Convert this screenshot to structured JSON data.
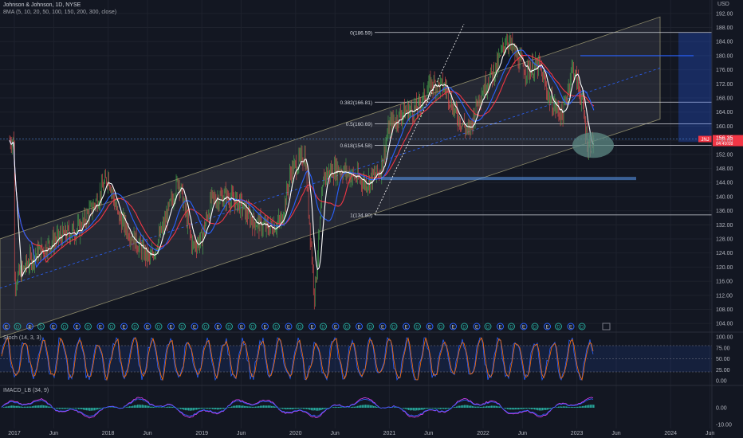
{
  "header": {
    "title": "Johnson & Johnson, 1D, NYSE",
    "indicator": "8MA (5, 10, 20, 50, 100, 150, 200, 300, close)"
  },
  "currency": "USD",
  "price_axis": {
    "ticks": [
      "192.00",
      "188.00",
      "184.00",
      "180.00",
      "176.00",
      "172.00",
      "168.00",
      "164.00",
      "160.00",
      "156.00",
      "152.00",
      "148.00",
      "144.00",
      "140.00",
      "136.00",
      "132.00",
      "128.00",
      "124.00",
      "120.00",
      "116.00",
      "112.00",
      "108.00",
      "104.00"
    ],
    "last_price_badge": "156.35",
    "last_price_time": "04:49:08",
    "symbol_tag": "JNJ"
  },
  "fib_levels": [
    {
      "label": "0(186.59)",
      "value": 186.59
    },
    {
      "label": "0.382(166.81)",
      "value": 166.81
    },
    {
      "label": "0.5(160.69)",
      "value": 160.69
    },
    {
      "label": "0.618(154.58)",
      "value": 154.58
    },
    {
      "label": "1(134.80)",
      "value": 134.8
    }
  ],
  "time_axis": [
    "2017",
    "Jun",
    "2018",
    "Jun",
    "2019",
    "Jun",
    "2020",
    "Jun",
    "2021",
    "Jun",
    "2022",
    "Jun",
    "2023",
    "Jun",
    "2024",
    "Jun"
  ],
  "stoch": {
    "label": "Stoch (14, 3, 3)",
    "ticks": [
      "100.00",
      "75.00",
      "50.00",
      "25.00",
      "0.00"
    ]
  },
  "imacd": {
    "label": "IMACD_LB (34, 9)",
    "ticks": [
      "0.00",
      "-10.00"
    ]
  },
  "colors": {
    "background": "#131722",
    "up_candle": "#26a69a",
    "down_candle": "#ef5350",
    "wick_green": "#4caf50",
    "ma_white": "#ffffff",
    "ma_blue": "#2962ff",
    "ma_red": "#f23645",
    "channel": "#787b86",
    "highlight_ellipse": "#5d8a84"
  },
  "chart_data": {
    "type": "line",
    "title": "Johnson & Johnson, 1D, NYSE",
    "xlabel": "",
    "ylabel": "USD",
    "ylim": [
      102,
      194
    ],
    "series": [
      {
        "values": [
          [
            2017.0,
            116
          ],
          [
            2017.2,
            123
          ],
          [
            2017.45,
            128
          ],
          [
            2017.7,
            131
          ],
          [
            2017.9,
            140
          ],
          [
            2018.0,
            146
          ],
          [
            2018.1,
            135
          ],
          [
            2018.3,
            127
          ],
          [
            2018.45,
            122
          ],
          [
            2018.6,
            132
          ],
          [
            2018.75,
            145
          ],
          [
            2018.9,
            126
          ],
          [
            2019.0,
            128
          ],
          [
            2019.1,
            139
          ],
          [
            2019.25,
            140
          ],
          [
            2019.4,
            138
          ],
          [
            2019.55,
            133
          ],
          [
            2019.7,
            131
          ],
          [
            2019.85,
            133
          ],
          [
            2019.95,
            147
          ],
          [
            2020.1,
            152
          ],
          [
            2020.2,
            112
          ],
          [
            2020.3,
            146
          ],
          [
            2020.45,
            148
          ],
          [
            2020.6,
            146
          ],
          [
            2020.75,
            144
          ],
          [
            2020.9,
            147
          ],
          [
            2021.0,
            160
          ],
          [
            2021.15,
            164
          ],
          [
            2021.3,
            165
          ],
          [
            2021.45,
            172
          ],
          [
            2021.6,
            171
          ],
          [
            2021.7,
            164
          ],
          [
            2021.85,
            158
          ],
          [
            2021.95,
            168
          ],
          [
            2022.05,
            173
          ],
          [
            2022.15,
            177
          ],
          [
            2022.25,
            185
          ],
          [
            2022.35,
            180
          ],
          [
            2022.45,
            176
          ],
          [
            2022.6,
            177
          ],
          [
            2022.72,
            167
          ],
          [
            2022.85,
            163
          ],
          [
            2022.95,
            177
          ],
          [
            2023.05,
            168
          ],
          [
            2023.12,
            154
          ],
          [
            2023.18,
            156
          ]
        ]
      }
    ]
  }
}
